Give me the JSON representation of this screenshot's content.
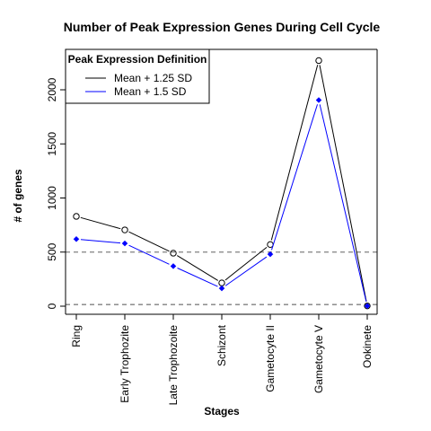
{
  "chart_data": {
    "type": "line",
    "title": "Number of Peak Expression Genes During Cell Cycle",
    "xlabel": "Stages",
    "ylabel": "# of genes",
    "categories": [
      "Ring",
      "Early Trophozite",
      "Late Trophozoite",
      "Schizont",
      "Gametocyte II",
      "Gametocyte V",
      "Ookinete"
    ],
    "yticks": [
      0,
      500,
      1000,
      1500,
      2000
    ],
    "ylim": [
      0,
      2270
    ],
    "grid": false,
    "reference_lines": [
      {
        "value": 500,
        "style": "dashed",
        "color": "#808080"
      },
      {
        "value": 15,
        "style": "dashed",
        "color": "#808080"
      }
    ],
    "legend": {
      "title": "Peak Expression Definition",
      "position": "top-left"
    },
    "series": [
      {
        "name": "Mean + 1.25 SD",
        "color": "#000000",
        "marker": "open-circle",
        "values": [
          830,
          705,
          490,
          215,
          570,
          2270,
          3
        ]
      },
      {
        "name": "Mean + 1.5 SD",
        "color": "#0000ff",
        "marker": "filled-diamond",
        "values": [
          620,
          580,
          370,
          165,
          480,
          1905,
          2
        ]
      }
    ]
  }
}
